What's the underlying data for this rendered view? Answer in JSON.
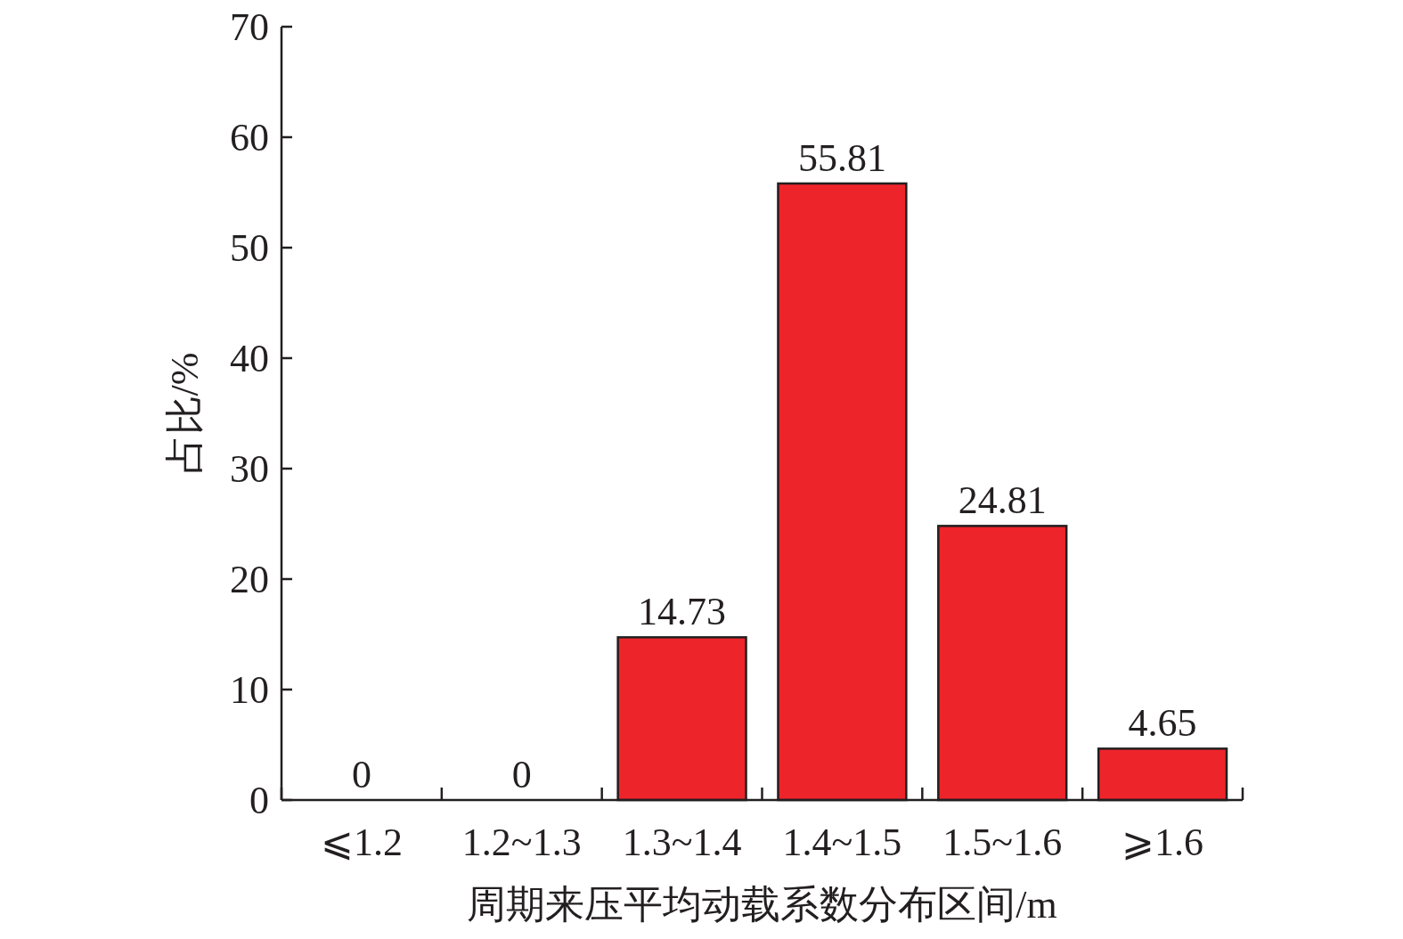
{
  "chart_data": {
    "type": "bar",
    "xlabel": "周期来压平均动载系数分布区间/m",
    "ylabel": "占比/%",
    "categories": [
      "⩽1.2",
      "1.2~1.3",
      "1.3~1.4",
      "1.4~1.5",
      "1.5~1.6",
      "⩾1.6"
    ],
    "values": [
      0,
      0,
      14.73,
      55.81,
      24.81,
      4.65
    ],
    "color": "#ee242b",
    "ylim": [
      0,
      70
    ],
    "yticks": [
      0,
      10,
      20,
      30,
      40,
      50,
      60,
      70
    ],
    "data_labels": true
  }
}
